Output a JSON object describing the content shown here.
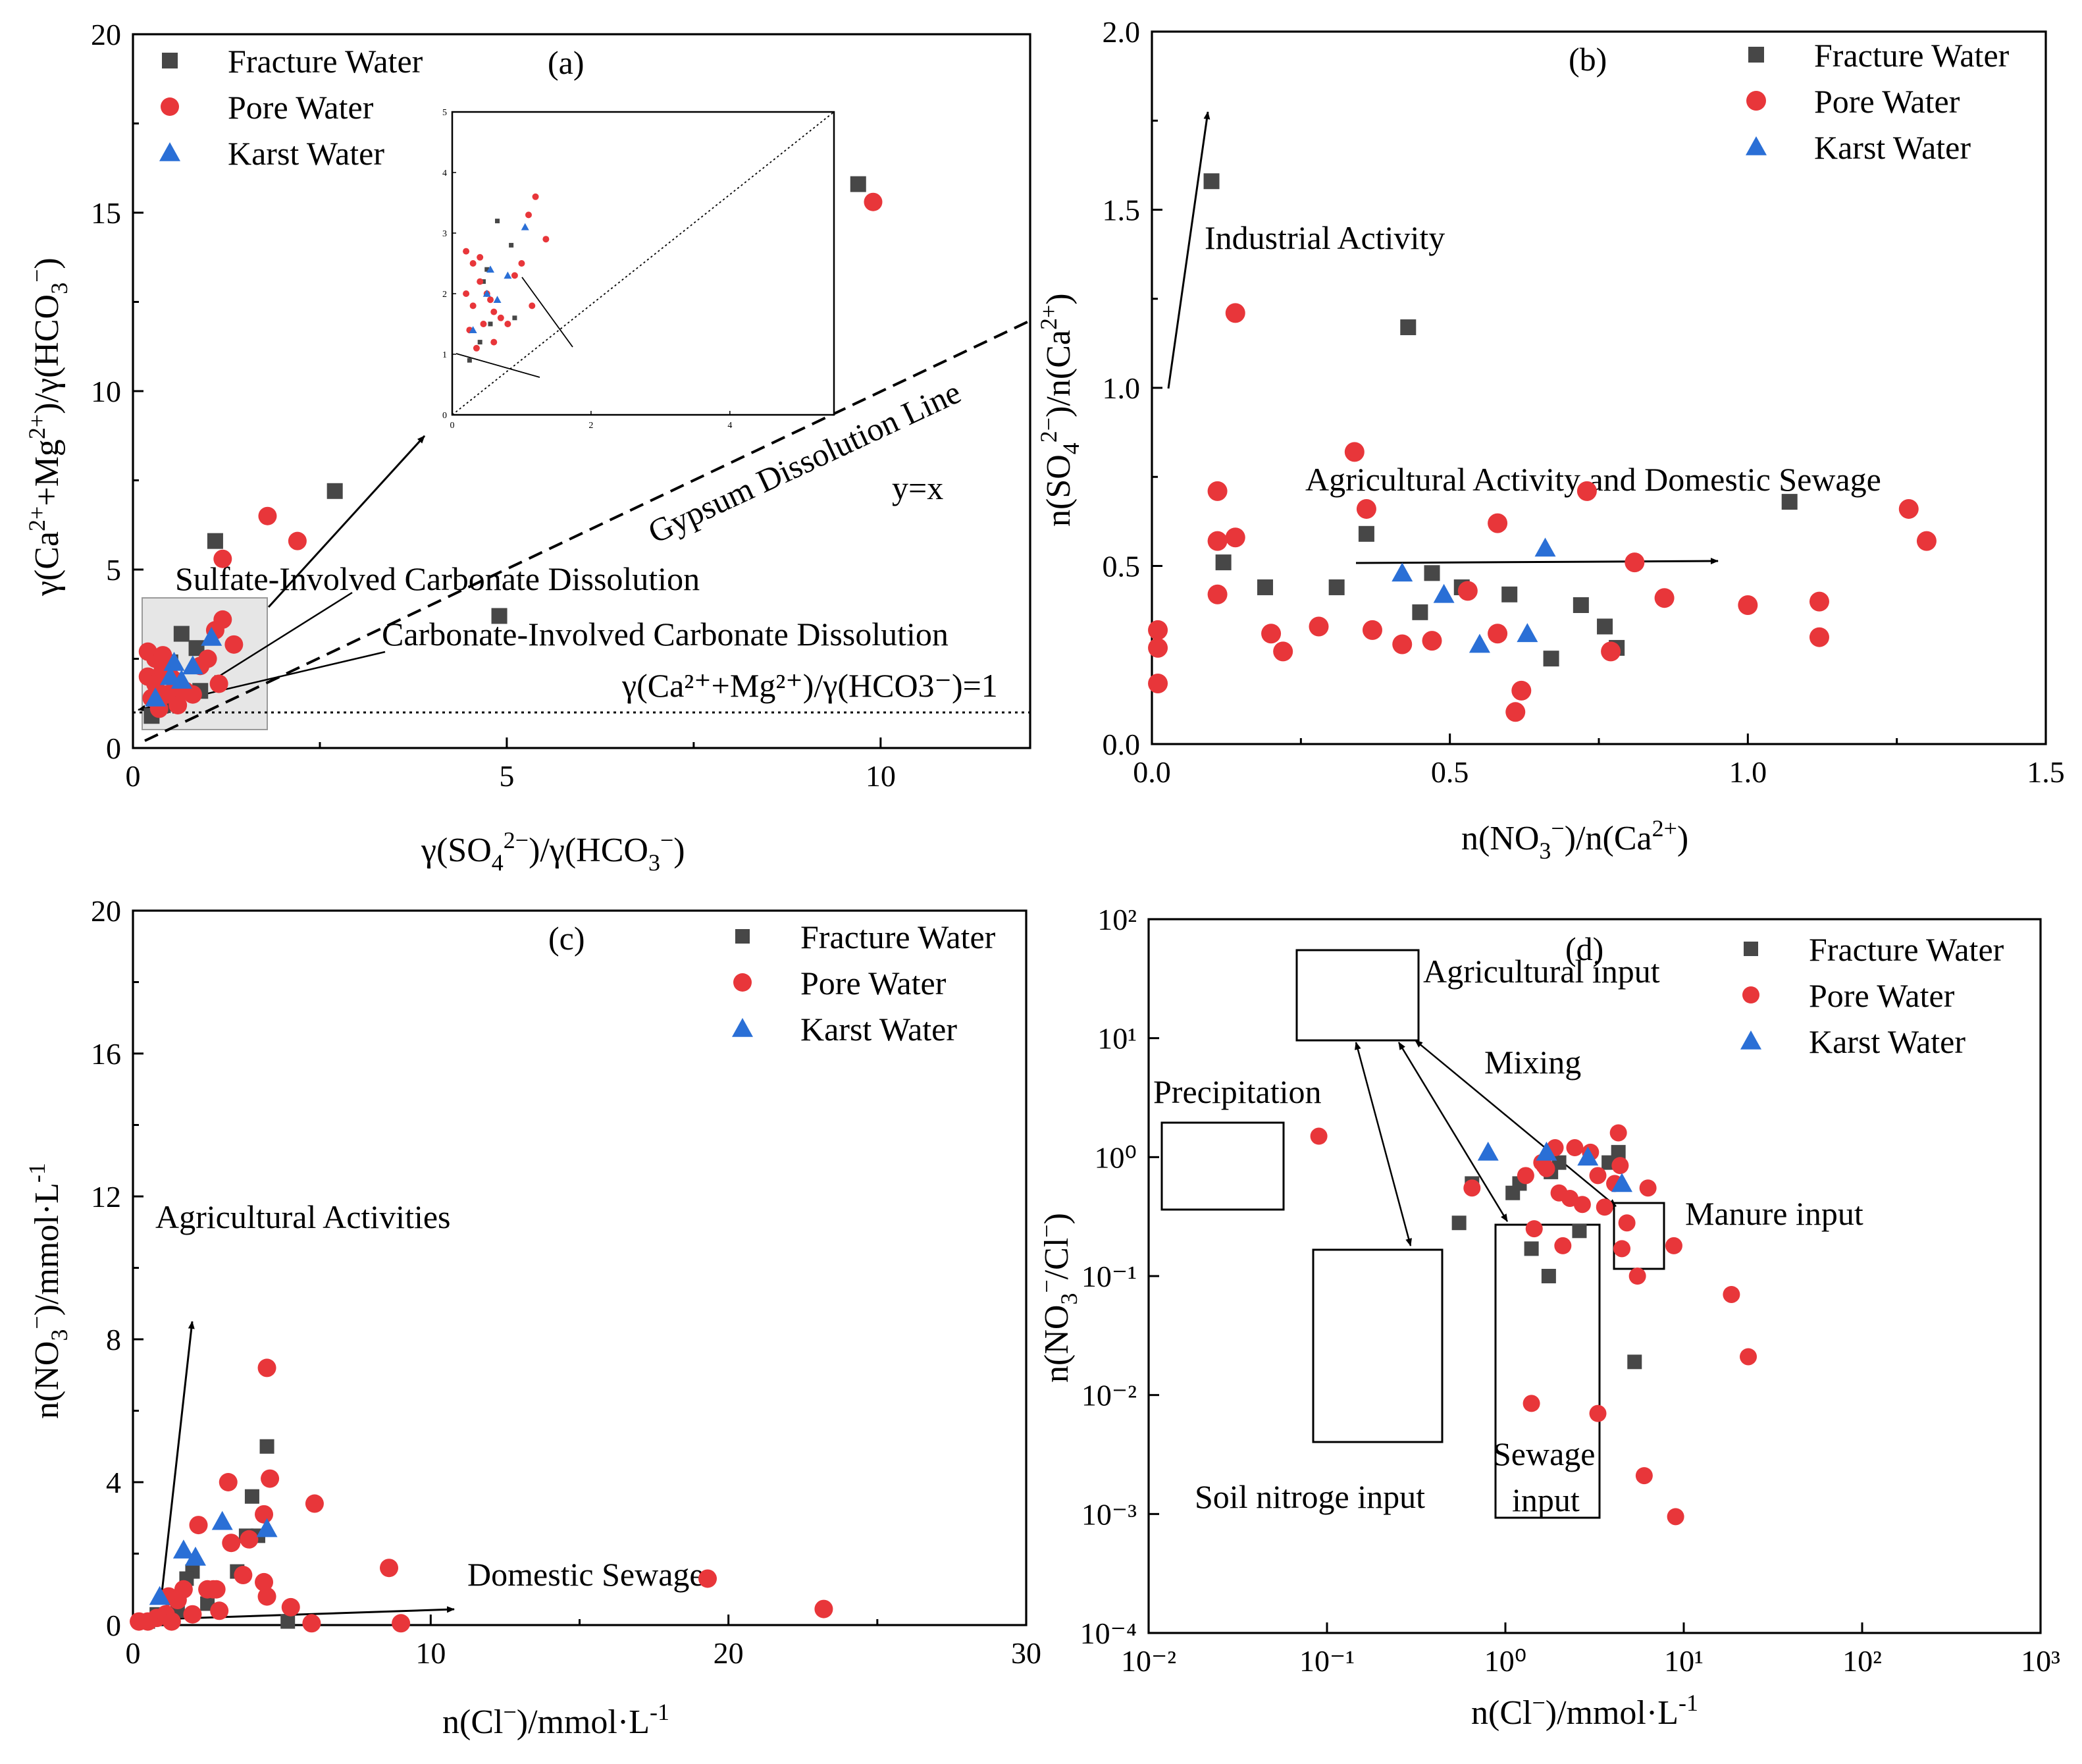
{
  "legend": {
    "fracture": "Fracture Water",
    "pore": "Pore Water",
    "karst": "Karst Water"
  },
  "colors": {
    "fracture": "#474747",
    "pore": "#e8363a",
    "karst": "#2a6fd6"
  },
  "chart_data": [
    {
      "id": "a",
      "type": "scatter",
      "panel_label": "(a)",
      "xlabel": "γ(SO4²⁻)/γ(HCO3⁻)",
      "ylabel": "γ(Ca²⁺+Mg²⁺)/γ(HCO3⁻)",
      "xlim": [
        0,
        12
      ],
      "ylim": [
        0,
        20
      ],
      "xticks": [
        "0",
        "5",
        "10"
      ],
      "yticks": [
        "0",
        "5",
        "10",
        "15",
        "20"
      ],
      "annotations": {
        "gypsum": "Gypsum Dissolution Line",
        "yx": "y=x",
        "sulfate": "Sulfate-Involved Carbonate Dissolution",
        "carbonate": "Carbonate-Involved Carbonate Dissolution",
        "ratio": "γ(Ca²⁺+Mg²⁺)/γ(HCO3⁻)=1"
      },
      "series": [
        {
          "name": "Fracture Water",
          "x": [
            1.1,
            2.7,
            4.9,
            9.7,
            0.65,
            0.85,
            0.5,
            0.45,
            0.55,
            0.9,
            0.25,
            0.4
          ],
          "y": [
            5.8,
            7.2,
            3.7,
            15.8,
            3.2,
            2.8,
            2.4,
            2.2,
            1.5,
            1.6,
            0.9,
            1.2
          ]
        },
        {
          "name": "Pore Water",
          "x": [
            1.8,
            2.2,
            1.2,
            9.9,
            0.2,
            0.3,
            0.4,
            0.2,
            1.1,
            1.2,
            1.35,
            0.3,
            0.45,
            0.6,
            0.55,
            0.7,
            0.35,
            1.15,
            0.9,
            0.5,
            0.6,
            0.25,
            0.4,
            0.8,
            1.0
          ],
          "y": [
            6.5,
            5.8,
            5.3,
            15.3,
            2.7,
            2.5,
            2.6,
            2.0,
            3.3,
            3.6,
            2.9,
            1.8,
            1.5,
            1.2,
            1.9,
            1.6,
            1.1,
            1.8,
            2.3,
            2.0,
            1.7,
            1.4,
            2.2,
            1.5,
            2.5
          ]
        },
        {
          "name": "Karst Water",
          "x": [
            0.55,
            1.05,
            0.65,
            0.3,
            0.8,
            0.5
          ],
          "y": [
            2.4,
            3.1,
            1.9,
            1.4,
            2.3,
            2.0
          ]
        }
      ]
    },
    {
      "id": "b",
      "type": "scatter",
      "panel_label": "(b)",
      "xlabel": "n(NO3⁻)/n(Ca²⁺)",
      "ylabel": "n(SO4²⁻)/n(Ca²⁺)",
      "xlim": [
        0,
        1.5
      ],
      "ylim": [
        0,
        2.0
      ],
      "xticks": [
        "0.0",
        "0.5",
        "1.0",
        "1.5"
      ],
      "yticks": [
        "0.0",
        "0.5",
        "1.0",
        "1.5",
        "2.0"
      ],
      "annotations": {
        "industrial": "Industrial Activity",
        "agri": "Agricultural Activity and Domestic Sewage"
      },
      "series": [
        {
          "name": "Fracture Water",
          "x": [
            0.1,
            0.43,
            1.07,
            0.12,
            0.19,
            0.31,
            0.36,
            0.45,
            0.47,
            0.52,
            0.6,
            0.67,
            0.72,
            0.76,
            0.78
          ],
          "y": [
            1.58,
            1.17,
            0.68,
            0.51,
            0.44,
            0.44,
            0.59,
            0.37,
            0.48,
            0.44,
            0.42,
            0.24,
            0.39,
            0.33,
            0.27
          ]
        },
        {
          "name": "Pore Water",
          "x": [
            0.14,
            0.34,
            0.11,
            0.36,
            0.58,
            0.73,
            1.27,
            1.3,
            0.11,
            0.14,
            0.11,
            0.2,
            0.22,
            0.28,
            0.37,
            0.42,
            0.47,
            0.53,
            0.58,
            0.61,
            0.62,
            0.77,
            0.81,
            0.86,
            1.0,
            1.12,
            1.12,
            0.01,
            0.01,
            0.01
          ],
          "y": [
            1.21,
            0.82,
            0.71,
            0.66,
            0.62,
            0.71,
            0.66,
            0.57,
            0.57,
            0.58,
            0.42,
            0.31,
            0.26,
            0.33,
            0.32,
            0.28,
            0.29,
            0.43,
            0.31,
            0.09,
            0.15,
            0.26,
            0.51,
            0.41,
            0.39,
            0.4,
            0.3,
            0.32,
            0.27,
            0.17
          ]
        },
        {
          "name": "Karst Water",
          "x": [
            0.42,
            0.49,
            0.55,
            0.63,
            0.66
          ],
          "y": [
            0.48,
            0.42,
            0.28,
            0.31,
            0.55
          ]
        }
      ]
    },
    {
      "id": "c",
      "type": "scatter",
      "panel_label": "(c)",
      "xlabel": "n(Cl⁻)/mmol·L⁻¹",
      "ylabel": "n(NO3⁻)/mmol·L⁻¹",
      "xlim": [
        0,
        30
      ],
      "ylim": [
        0,
        20
      ],
      "xticks": [
        "0",
        "10",
        "20",
        "30"
      ],
      "yticks": [
        "0",
        "4",
        "8",
        "12",
        "16",
        "20"
      ],
      "annotations": {
        "agri": "Agricultural Activities",
        "sewage": "Domestic Sewage"
      },
      "series": [
        {
          "name": "Fracture Water",
          "x": [
            4.5,
            4.0,
            3.8,
            3.5,
            2.0,
            1.8,
            2.5,
            1.5,
            0.8,
            0.5,
            5.2,
            4.2
          ],
          "y": [
            5.0,
            3.6,
            2.5,
            1.5,
            1.5,
            1.3,
            0.6,
            0.4,
            0.3,
            0.1,
            0.1,
            2.5
          ]
        },
        {
          "name": "Pore Water",
          "x": [
            4.5,
            3.2,
            4.6,
            6.1,
            4.4,
            3.3,
            3.9,
            4.4,
            2.8,
            8.6,
            19.3,
            23.2,
            2.2,
            1.7,
            1.2,
            1.5,
            2.5,
            2.7,
            3.7,
            4.5,
            5.3,
            0.8,
            0.5,
            0.2,
            1.1,
            2.9,
            6.0,
            9.0,
            1.3,
            2.0
          ],
          "y": [
            7.2,
            4.0,
            4.1,
            3.4,
            3.1,
            2.3,
            2.4,
            1.2,
            1.0,
            1.6,
            1.3,
            0.45,
            2.8,
            1.0,
            0.8,
            0.7,
            1.0,
            1.0,
            1.4,
            0.8,
            0.5,
            0.2,
            0.1,
            0.1,
            0.3,
            0.4,
            0.05,
            0.05,
            0.1,
            0.3
          ]
        },
        {
          "name": "Karst Water",
          "x": [
            0.9,
            1.7,
            2.1,
            3.0,
            4.5
          ],
          "y": [
            0.8,
            2.1,
            1.9,
            2.9,
            2.7
          ]
        }
      ]
    },
    {
      "id": "d",
      "type": "scatter",
      "panel_label": "(d)",
      "xlabel": "n(Cl⁻)/mmol·L⁻¹",
      "ylabel": "n(NO3⁻/Cl⁻)",
      "xlim": [
        0.01,
        1000
      ],
      "ylim": [
        0.0001,
        100
      ],
      "scale": "log",
      "xticks": [
        "10⁻²",
        "10⁻¹",
        "10⁰",
        "10¹",
        "10²",
        "10³"
      ],
      "yticks": [
        "10⁻⁴",
        "10⁻³",
        "10⁻²",
        "10⁻¹",
        "10⁰",
        "10¹",
        "10²"
      ],
      "annotations": {
        "agri": "Agricultural input",
        "mixing": "Mixing",
        "precip": "Precipitation",
        "manure": "Manure input",
        "soil": "Soil nitroge input",
        "sewage1": "Sewage",
        "sewage2": "input"
      },
      "series": [
        {
          "name": "Fracture Water",
          "x": [
            0.55,
            0.65,
            1.2,
            1.4,
            1.75,
            1.8,
            2.6,
            3.8,
            4.3,
            5.3,
            1.1,
            2.0
          ],
          "y": [
            0.28,
            0.6,
            0.6,
            0.17,
            0.1,
            0.75,
            0.24,
            0.9,
            1.1,
            0.019,
            0.5,
            0.9
          ]
        },
        {
          "name": "Pore Water",
          "x": [
            0.09,
            0.65,
            1.3,
            1.45,
            1.65,
            1.7,
            2.1,
            2.45,
            2.7,
            3.0,
            3.3,
            3.6,
            4.3,
            4.5,
            4.8,
            5.5,
            6.3,
            8.8,
            18.5,
            23.0,
            1.4,
            3.3,
            6.0,
            9.0,
            1.6,
            2.0,
            4.4,
            2.3,
            1.9,
            4.1
          ],
          "y": [
            1.5,
            0.55,
            0.7,
            0.25,
            0.85,
            0.8,
            0.18,
            1.2,
            0.4,
            1.1,
            0.7,
            0.38,
            1.6,
            0.17,
            0.28,
            0.1,
            0.55,
            0.18,
            0.07,
            0.021,
            0.0085,
            0.007,
            0.0021,
            0.00095,
            0.9,
            0.5,
            0.85,
            0.45,
            1.2,
            0.6
          ]
        },
        {
          "name": "Karst Water",
          "x": [
            0.8,
            1.7,
            2.9,
            4.5
          ],
          "y": [
            1.1,
            1.1,
            1.0,
            0.6
          ]
        }
      ]
    }
  ],
  "inset": {
    "xticks": [
      "0",
      "2",
      "4"
    ],
    "yticks": [
      "0",
      "1",
      "2",
      "3",
      "4",
      "5"
    ]
  }
}
